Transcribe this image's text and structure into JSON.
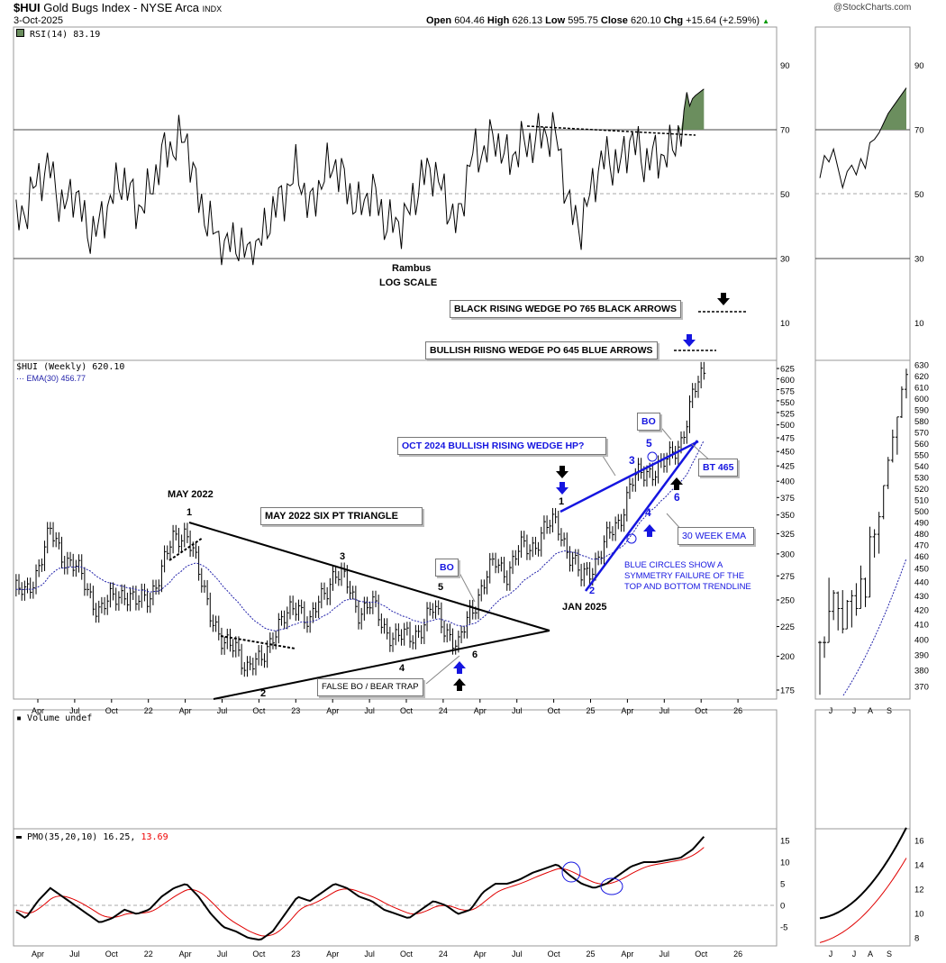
{
  "header": {
    "symbol": "$HUI",
    "name": "Gold Bugs Index - NYSE Arca",
    "exchange": "INDX",
    "date": "3-Oct-2025",
    "copyright": "@StockCharts.com",
    "open_label": "Open",
    "open": "604.46",
    "high_label": "High",
    "high": "626.13",
    "low_label": "Low",
    "low": "595.75",
    "close_label": "Close",
    "close": "620.10",
    "chg_label": "Chg",
    "chg": "+15.64 (+2.59%)"
  },
  "legends": {
    "rsi": "RSI(14) 83.19",
    "price": "$HUI (Weekly) 620.10",
    "ema": "EMA(30) 456.77",
    "volume": "Volume undef",
    "pmo": "PMO(35,20,10) 16.25,",
    "pmo_signal": "13.69"
  },
  "annotations": {
    "rambus": "Rambus",
    "log_scale": "LOG SCALE",
    "black_wedge": "BLACK RISING WEDGE PO 765 BLACK ARROWS",
    "bullish_wedge": "BULLISH RIISNG WEDGE PO 645 BLUE ARROWS",
    "may2022": "MAY 2022",
    "triangle": "MAY 2022 SIX PT  TRIANGLE",
    "bo1": "BO",
    "false_bo": "FALSE BO / BEAR TRAP",
    "jan2025": "JAN 2025",
    "oct2024": "OCT 2024 BULLISH RISING WEDGE HP?",
    "bo2": "BO",
    "bt": "BT 465",
    "ema30": "30 WEEK EMA",
    "circles1": "BLUE CIRCLES SHOW A",
    "circles2": "SYMMETRY FAILURE OF THE",
    "circles3": "TOP AND BOTTOM TRENDLINE",
    "tri_points": [
      "1",
      "2",
      "3",
      "4",
      "5",
      "6"
    ],
    "wedge_points": [
      "1",
      "2",
      "3",
      "4",
      "5",
      "6"
    ]
  },
  "colors": {
    "price": "#000000",
    "ema": "#2222aa",
    "rsi_fill": "#6b8e5e",
    "pmo": "#000000",
    "pmo_signal": "#e00000",
    "circle": "#1515e0"
  },
  "chart_data": {
    "type": "line",
    "title": "$HUI Gold Bugs Index (Weekly)",
    "x_ticks": [
      "Apr",
      "Jul",
      "Oct",
      "22",
      "Apr",
      "Jul",
      "Oct",
      "23",
      "Apr",
      "Jul",
      "Oct",
      "24",
      "Apr",
      "Jul",
      "Oct",
      "25",
      "Apr",
      "Jul",
      "Oct",
      "26"
    ],
    "months_start": "2021-02",
    "price_monthly": [
      260,
      255,
      285,
      325,
      300,
      285,
      260,
      240,
      250,
      260,
      245,
      255,
      280,
      320,
      330,
      275,
      240,
      205,
      210,
      190,
      195,
      220,
      230,
      250,
      225,
      255,
      280,
      265,
      240,
      245,
      225,
      215,
      215,
      225,
      240,
      225,
      205,
      240,
      265,
      290,
      280,
      305,
      310,
      330,
      340,
      300,
      270,
      290,
      315,
      340,
      400,
      410,
      425,
      430,
      470,
      560,
      620
    ],
    "rsi_monthly": [
      40,
      45,
      55,
      58,
      45,
      52,
      38,
      40,
      50,
      55,
      45,
      50,
      62,
      65,
      68,
      48,
      40,
      33,
      36,
      31,
      35,
      45,
      50,
      58,
      45,
      55,
      60,
      52,
      45,
      52,
      42,
      40,
      44,
      55,
      58,
      48,
      40,
      62,
      63,
      68,
      60,
      65,
      66,
      69,
      68,
      45,
      40,
      55,
      62,
      58,
      68,
      60,
      62,
      62,
      70,
      80,
      83
    ],
    "pmo_monthly": [
      -1,
      -3,
      1,
      4,
      2,
      0,
      -2,
      -4,
      -3,
      -1,
      -2,
      -1,
      2,
      4,
      5,
      2,
      -2,
      -5,
      -6,
      -7.5,
      -8,
      -6,
      -2,
      2,
      1,
      3,
      5,
      4,
      2,
      1,
      -1,
      -2,
      -3,
      -1,
      1,
      0,
      -2,
      -1,
      3,
      5,
      5,
      6,
      7.5,
      8.5,
      9.5,
      7,
      5,
      4,
      5,
      7,
      9,
      10,
      10,
      10.5,
      11,
      13,
      16.25
    ],
    "price_ticks": [
      625,
      600,
      575,
      550,
      525,
      500,
      475,
      450,
      425,
      400,
      375,
      350,
      325,
      300,
      275,
      250,
      225,
      200,
      175
    ],
    "rsi_ticks": [
      90,
      70,
      50,
      30,
      10
    ],
    "pmo_ticks": [
      15,
      10,
      5,
      0,
      -5
    ],
    "recent": {
      "x_ticks": [
        "J",
        "J",
        "A",
        "S"
      ],
      "close": [
        398,
        398,
        419,
        432,
        421,
        407,
        426,
        430,
        421,
        442,
        429,
        474,
        476,
        490,
        516,
        538,
        559,
        578,
        605,
        620
      ],
      "high": [
        399,
        402,
        443,
        434,
        433,
        434,
        427,
        434,
        439,
        452,
        443,
        482,
        480,
        494,
        516,
        541,
        566,
        578,
        608,
        626
      ],
      "low": [
        365,
        388,
        398,
        413,
        406,
        404,
        407,
        408,
        416,
        421,
        422,
        429,
        458,
        461,
        488,
        513,
        536,
        543,
        577,
        596
      ],
      "price_ticks": [
        630,
        620,
        610,
        600,
        590,
        580,
        570,
        560,
        550,
        540,
        530,
        520,
        510,
        500,
        490,
        480,
        470,
        460,
        450,
        440,
        430,
        420,
        410,
        400,
        390,
        380,
        370
      ],
      "pmo_ticks": [
        16,
        14,
        12,
        10,
        8
      ]
    }
  }
}
